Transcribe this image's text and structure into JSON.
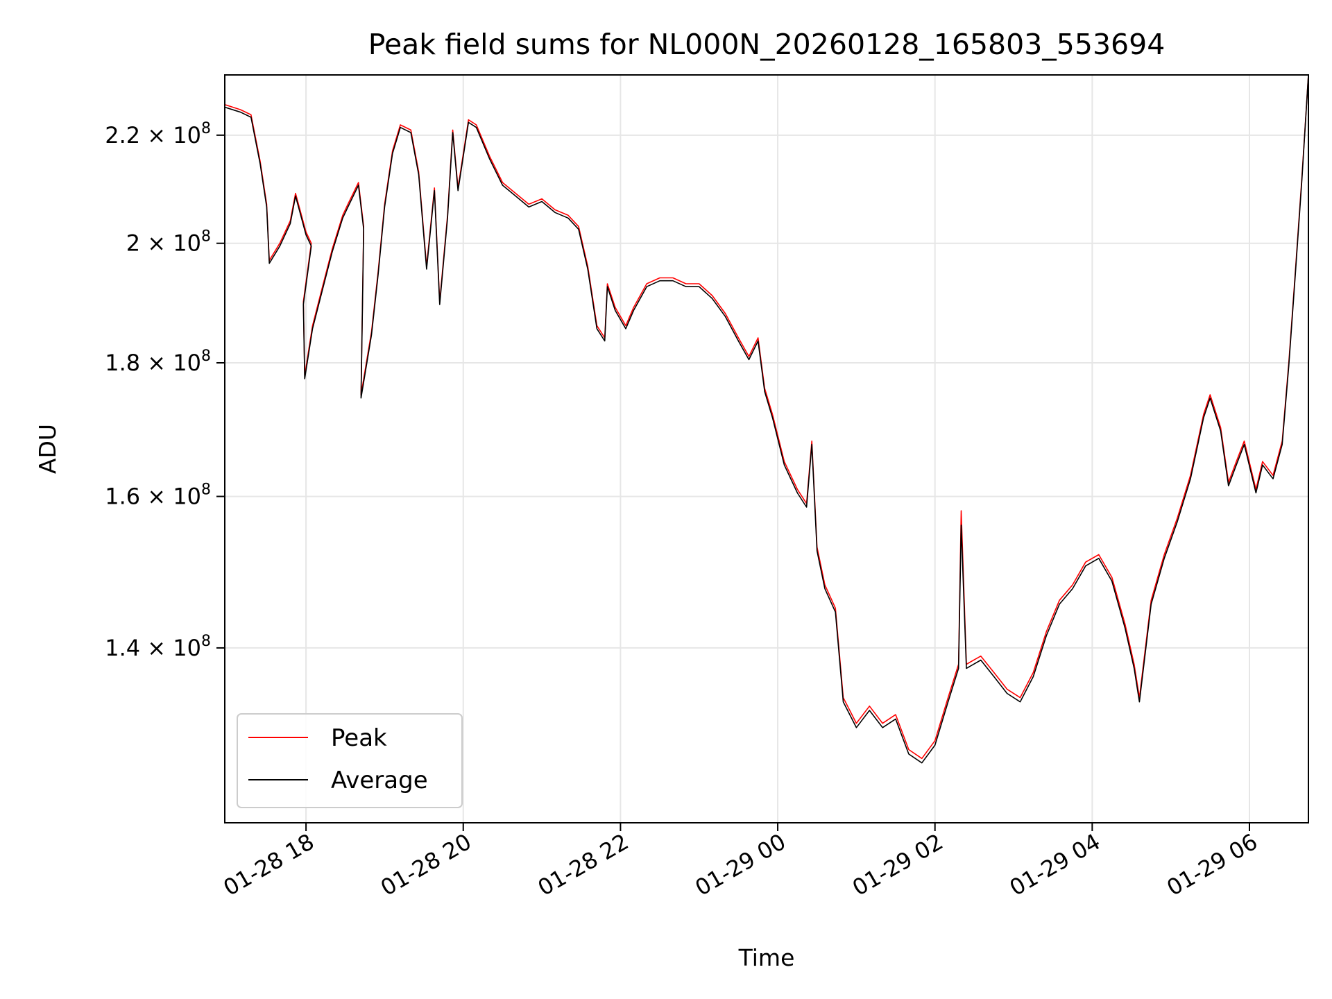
{
  "chart_data": {
    "type": "line",
    "title": "Peak field sums for NL000N_20260128_165803_553694",
    "xlabel": "Time",
    "ylabel": "ADU",
    "y_scale": "log",
    "x_range": [
      "2026-01-28 16:58",
      "2026-01-29 06:45"
    ],
    "ylim": [
      120000000,
      232000000
    ],
    "grid": true,
    "legend_position": "lower left",
    "x_ticks": [
      "01-28 18",
      "01-28 20",
      "01-28 22",
      "01-29 00",
      "01-29 02",
      "01-29 04",
      "01-29 06"
    ],
    "x_tick_times": [
      "2026-01-28 18:00",
      "2026-01-28 20:00",
      "2026-01-28 22:00",
      "2026-01-29 00:00",
      "2026-01-29 02:00",
      "2026-01-29 04:00",
      "2026-01-29 06:00"
    ],
    "y_ticks": [
      {
        "value": 140000000,
        "mantissa": "1.4",
        "exp": "8"
      },
      {
        "value": 160000000,
        "mantissa": "1.6",
        "exp": "8"
      },
      {
        "value": 180000000,
        "mantissa": "1.8",
        "exp": "8"
      },
      {
        "value": 200000000,
        "mantissa": "2",
        "exp": "8"
      },
      {
        "value": 220000000,
        "mantissa": "2.2",
        "exp": "8"
      }
    ],
    "series": [
      {
        "name": "Peak",
        "color": "#ff0000",
        "points": [
          [
            "2026-01-28 16:58",
            226000000
          ],
          [
            "2026-01-28 17:10",
            225000000
          ],
          [
            "2026-01-28 17:18",
            224000000
          ],
          [
            "2026-01-28 17:25",
            215000000
          ],
          [
            "2026-01-28 17:30",
            207000000
          ],
          [
            "2026-01-28 17:32",
            197000000
          ],
          [
            "2026-01-28 17:40",
            200000000
          ],
          [
            "2026-01-28 17:48",
            204000000
          ],
          [
            "2026-01-28 17:52",
            209000000
          ],
          [
            "2026-01-28 18:00",
            202000000
          ],
          [
            "2026-01-28 18:04",
            200000000
          ],
          [
            "2026-01-28 17:58",
            190000000
          ],
          [
            "2026-01-28 17:59",
            178000000
          ],
          [
            "2026-01-28 18:05",
            186000000
          ],
          [
            "2026-01-28 18:12",
            192000000
          ],
          [
            "2026-01-28 18:20",
            199000000
          ],
          [
            "2026-01-28 18:28",
            205000000
          ],
          [
            "2026-01-28 18:32",
            207000000
          ],
          [
            "2026-01-28 18:40",
            211000000
          ],
          [
            "2026-01-28 18:44",
            203000000
          ],
          [
            "2026-01-28 18:42",
            175000000
          ],
          [
            "2026-01-28 18:50",
            185000000
          ],
          [
            "2026-01-28 18:55",
            195000000
          ],
          [
            "2026-01-28 19:00",
            207000000
          ],
          [
            "2026-01-28 19:06",
            217000000
          ],
          [
            "2026-01-28 19:12",
            222000000
          ],
          [
            "2026-01-28 19:20",
            221000000
          ],
          [
            "2026-01-28 19:26",
            213000000
          ],
          [
            "2026-01-28 19:32",
            196000000
          ],
          [
            "2026-01-28 19:38",
            210000000
          ],
          [
            "2026-01-28 19:42",
            190000000
          ],
          [
            "2026-01-28 19:48",
            205000000
          ],
          [
            "2026-01-28 19:52",
            221000000
          ],
          [
            "2026-01-28 19:56",
            210000000
          ],
          [
            "2026-01-28 20:04",
            223000000
          ],
          [
            "2026-01-28 20:10",
            222000000
          ],
          [
            "2026-01-28 20:20",
            216000000
          ],
          [
            "2026-01-28 20:30",
            211000000
          ],
          [
            "2026-01-28 20:40",
            209000000
          ],
          [
            "2026-01-28 20:50",
            207000000
          ],
          [
            "2026-01-28 21:00",
            208000000
          ],
          [
            "2026-01-28 21:10",
            206000000
          ],
          [
            "2026-01-28 21:20",
            205000000
          ],
          [
            "2026-01-28 21:28",
            203000000
          ],
          [
            "2026-01-28 21:35",
            196000000
          ],
          [
            "2026-01-28 21:42",
            186000000
          ],
          [
            "2026-01-28 21:48",
            184000000
          ],
          [
            "2026-01-28 21:50",
            193000000
          ],
          [
            "2026-01-28 21:56",
            189000000
          ],
          [
            "2026-01-28 22:04",
            186000000
          ],
          [
            "2026-01-28 22:10",
            189000000
          ],
          [
            "2026-01-28 22:20",
            193000000
          ],
          [
            "2026-01-28 22:30",
            194000000
          ],
          [
            "2026-01-28 22:40",
            194000000
          ],
          [
            "2026-01-28 22:50",
            193000000
          ],
          [
            "2026-01-28 23:00",
            193000000
          ],
          [
            "2026-01-28 23:10",
            191000000
          ],
          [
            "2026-01-28 23:20",
            188000000
          ],
          [
            "2026-01-28 23:30",
            184000000
          ],
          [
            "2026-01-28 23:38",
            181000000
          ],
          [
            "2026-01-28 23:45",
            184000000
          ],
          [
            "2026-01-28 23:50",
            176000000
          ],
          [
            "2026-01-28 23:56",
            172000000
          ],
          [
            "2026-01-29 00:05",
            165000000
          ],
          [
            "2026-01-29 00:15",
            161000000
          ],
          [
            "2026-01-29 00:22",
            159000000
          ],
          [
            "2026-01-29 00:26",
            168000000
          ],
          [
            "2026-01-29 00:30",
            153000000
          ],
          [
            "2026-01-29 00:36",
            148000000
          ],
          [
            "2026-01-29 00:44",
            145000000
          ],
          [
            "2026-01-29 00:50",
            134000000
          ],
          [
            "2026-01-29 01:00",
            131000000
          ],
          [
            "2026-01-29 01:10",
            133000000
          ],
          [
            "2026-01-29 01:20",
            131000000
          ],
          [
            "2026-01-29 01:30",
            132000000
          ],
          [
            "2026-01-29 01:40",
            128000000
          ],
          [
            "2026-01-29 01:50",
            127000000
          ],
          [
            "2026-01-29 02:00",
            129000000
          ],
          [
            "2026-01-29 02:10",
            134000000
          ],
          [
            "2026-01-29 02:18",
            138000000
          ],
          [
            "2026-01-29 02:20",
            158000000
          ],
          [
            "2026-01-29 02:24",
            138000000
          ],
          [
            "2026-01-29 02:35",
            139000000
          ],
          [
            "2026-01-29 02:45",
            137000000
          ],
          [
            "2026-01-29 02:55",
            135000000
          ],
          [
            "2026-01-29 03:05",
            134000000
          ],
          [
            "2026-01-29 03:15",
            137000000
          ],
          [
            "2026-01-29 03:25",
            142000000
          ],
          [
            "2026-01-29 03:35",
            146000000
          ],
          [
            "2026-01-29 03:45",
            148000000
          ],
          [
            "2026-01-29 03:55",
            151000000
          ],
          [
            "2026-01-29 04:05",
            152000000
          ],
          [
            "2026-01-29 04:15",
            149000000
          ],
          [
            "2026-01-29 04:25",
            143000000
          ],
          [
            "2026-01-29 04:32",
            138000000
          ],
          [
            "2026-01-29 04:36",
            134000000
          ],
          [
            "2026-01-29 04:45",
            146000000
          ],
          [
            "2026-01-29 04:55",
            152000000
          ],
          [
            "2026-01-29 05:05",
            157000000
          ],
          [
            "2026-01-29 05:15",
            163000000
          ],
          [
            "2026-01-29 05:25",
            172000000
          ],
          [
            "2026-01-29 05:30",
            175000000
          ],
          [
            "2026-01-29 05:38",
            170000000
          ],
          [
            "2026-01-29 05:44",
            162000000
          ],
          [
            "2026-01-29 05:50",
            165000000
          ],
          [
            "2026-01-29 05:56",
            168000000
          ],
          [
            "2026-01-29 06:05",
            161000000
          ],
          [
            "2026-01-29 06:10",
            165000000
          ],
          [
            "2026-01-29 06:18",
            163000000
          ],
          [
            "2026-01-29 06:25",
            168000000
          ],
          [
            "2026-01-29 06:30",
            180000000
          ],
          [
            "2026-01-29 06:35",
            195000000
          ],
          [
            "2026-01-29 06:40",
            212000000
          ],
          [
            "2026-01-29 06:45",
            232000000
          ]
        ]
      },
      {
        "name": "Average",
        "color": "#000000",
        "points": [
          [
            "2026-01-28 16:58",
            225500000
          ],
          [
            "2026-01-28 17:10",
            224500000
          ],
          [
            "2026-01-28 17:18",
            223500000
          ],
          [
            "2026-01-28 17:25",
            214500000
          ],
          [
            "2026-01-28 17:30",
            206500000
          ],
          [
            "2026-01-28 17:32",
            196500000
          ],
          [
            "2026-01-28 17:40",
            199500000
          ],
          [
            "2026-01-28 17:48",
            203500000
          ],
          [
            "2026-01-28 17:52",
            208500000
          ],
          [
            "2026-01-28 18:00",
            201500000
          ],
          [
            "2026-01-28 18:04",
            199500000
          ],
          [
            "2026-01-28 17:58",
            189500000
          ],
          [
            "2026-01-28 17:59",
            177500000
          ],
          [
            "2026-01-28 18:05",
            185500000
          ],
          [
            "2026-01-28 18:12",
            191500000
          ],
          [
            "2026-01-28 18:20",
            198500000
          ],
          [
            "2026-01-28 18:28",
            204500000
          ],
          [
            "2026-01-28 18:32",
            206500000
          ],
          [
            "2026-01-28 18:40",
            210500000
          ],
          [
            "2026-01-28 18:44",
            202500000
          ],
          [
            "2026-01-28 18:42",
            174500000
          ],
          [
            "2026-01-28 18:50",
            184500000
          ],
          [
            "2026-01-28 18:55",
            194500000
          ],
          [
            "2026-01-28 19:00",
            206500000
          ],
          [
            "2026-01-28 19:06",
            216500000
          ],
          [
            "2026-01-28 19:12",
            221500000
          ],
          [
            "2026-01-28 19:20",
            220500000
          ],
          [
            "2026-01-28 19:26",
            212500000
          ],
          [
            "2026-01-28 19:32",
            195500000
          ],
          [
            "2026-01-28 19:38",
            209500000
          ],
          [
            "2026-01-28 19:42",
            189500000
          ],
          [
            "2026-01-28 19:48",
            204500000
          ],
          [
            "2026-01-28 19:52",
            220500000
          ],
          [
            "2026-01-28 19:56",
            209500000
          ],
          [
            "2026-01-28 20:04",
            222500000
          ],
          [
            "2026-01-28 20:10",
            221500000
          ],
          [
            "2026-01-28 20:20",
            215500000
          ],
          [
            "2026-01-28 20:30",
            210500000
          ],
          [
            "2026-01-28 20:40",
            208500000
          ],
          [
            "2026-01-28 20:50",
            206500000
          ],
          [
            "2026-01-28 21:00",
            207500000
          ],
          [
            "2026-01-28 21:10",
            205500000
          ],
          [
            "2026-01-28 21:20",
            204500000
          ],
          [
            "2026-01-28 21:28",
            202500000
          ],
          [
            "2026-01-28 21:35",
            195500000
          ],
          [
            "2026-01-28 21:42",
            185500000
          ],
          [
            "2026-01-28 21:48",
            183500000
          ],
          [
            "2026-01-28 21:50",
            192500000
          ],
          [
            "2026-01-28 21:56",
            188500000
          ],
          [
            "2026-01-28 22:04",
            185500000
          ],
          [
            "2026-01-28 22:10",
            188500000
          ],
          [
            "2026-01-28 22:20",
            192500000
          ],
          [
            "2026-01-28 22:30",
            193500000
          ],
          [
            "2026-01-28 22:40",
            193500000
          ],
          [
            "2026-01-28 22:50",
            192500000
          ],
          [
            "2026-01-28 23:00",
            192500000
          ],
          [
            "2026-01-28 23:10",
            190500000
          ],
          [
            "2026-01-28 23:20",
            187500000
          ],
          [
            "2026-01-28 23:30",
            183500000
          ],
          [
            "2026-01-28 23:38",
            180500000
          ],
          [
            "2026-01-28 23:45",
            183500000
          ],
          [
            "2026-01-28 23:50",
            175500000
          ],
          [
            "2026-01-28 23:56",
            171500000
          ],
          [
            "2026-01-29 00:05",
            164500000
          ],
          [
            "2026-01-29 00:15",
            160500000
          ],
          [
            "2026-01-29 00:22",
            158500000
          ],
          [
            "2026-01-29 00:26",
            167500000
          ],
          [
            "2026-01-29 00:30",
            152500000
          ],
          [
            "2026-01-29 00:36",
            147500000
          ],
          [
            "2026-01-29 00:44",
            144500000
          ],
          [
            "2026-01-29 00:50",
            133500000
          ],
          [
            "2026-01-29 01:00",
            130500000
          ],
          [
            "2026-01-29 01:10",
            132500000
          ],
          [
            "2026-01-29 01:20",
            130500000
          ],
          [
            "2026-01-29 01:30",
            131500000
          ],
          [
            "2026-01-29 01:40",
            127500000
          ],
          [
            "2026-01-29 01:50",
            126500000
          ],
          [
            "2026-01-29 02:00",
            128500000
          ],
          [
            "2026-01-29 02:10",
            133500000
          ],
          [
            "2026-01-29 02:18",
            137500000
          ],
          [
            "2026-01-29 02:20",
            156000000
          ],
          [
            "2026-01-29 02:24",
            137500000
          ],
          [
            "2026-01-29 02:35",
            138500000
          ],
          [
            "2026-01-29 02:45",
            136500000
          ],
          [
            "2026-01-29 02:55",
            134500000
          ],
          [
            "2026-01-29 03:05",
            133500000
          ],
          [
            "2026-01-29 03:15",
            136500000
          ],
          [
            "2026-01-29 03:25",
            141500000
          ],
          [
            "2026-01-29 03:35",
            145500000
          ],
          [
            "2026-01-29 03:45",
            147500000
          ],
          [
            "2026-01-29 03:55",
            150500000
          ],
          [
            "2026-01-29 04:05",
            151500000
          ],
          [
            "2026-01-29 04:15",
            148500000
          ],
          [
            "2026-01-29 04:25",
            142500000
          ],
          [
            "2026-01-29 04:32",
            137500000
          ],
          [
            "2026-01-29 04:36",
            133500000
          ],
          [
            "2026-01-29 04:45",
            145500000
          ],
          [
            "2026-01-29 04:55",
            151500000
          ],
          [
            "2026-01-29 05:05",
            156500000
          ],
          [
            "2026-01-29 05:15",
            162500000
          ],
          [
            "2026-01-29 05:25",
            171500000
          ],
          [
            "2026-01-29 05:30",
            174500000
          ],
          [
            "2026-01-29 05:38",
            169500000
          ],
          [
            "2026-01-29 05:44",
            161500000
          ],
          [
            "2026-01-29 05:50",
            164500000
          ],
          [
            "2026-01-29 05:56",
            167500000
          ],
          [
            "2026-01-29 06:05",
            160500000
          ],
          [
            "2026-01-29 06:10",
            164500000
          ],
          [
            "2026-01-29 06:18",
            162500000
          ],
          [
            "2026-01-29 06:25",
            167500000
          ],
          [
            "2026-01-29 06:30",
            179500000
          ],
          [
            "2026-01-29 06:35",
            194500000
          ],
          [
            "2026-01-29 06:40",
            211500000
          ],
          [
            "2026-01-29 06:45",
            232000000
          ]
        ]
      }
    ]
  }
}
